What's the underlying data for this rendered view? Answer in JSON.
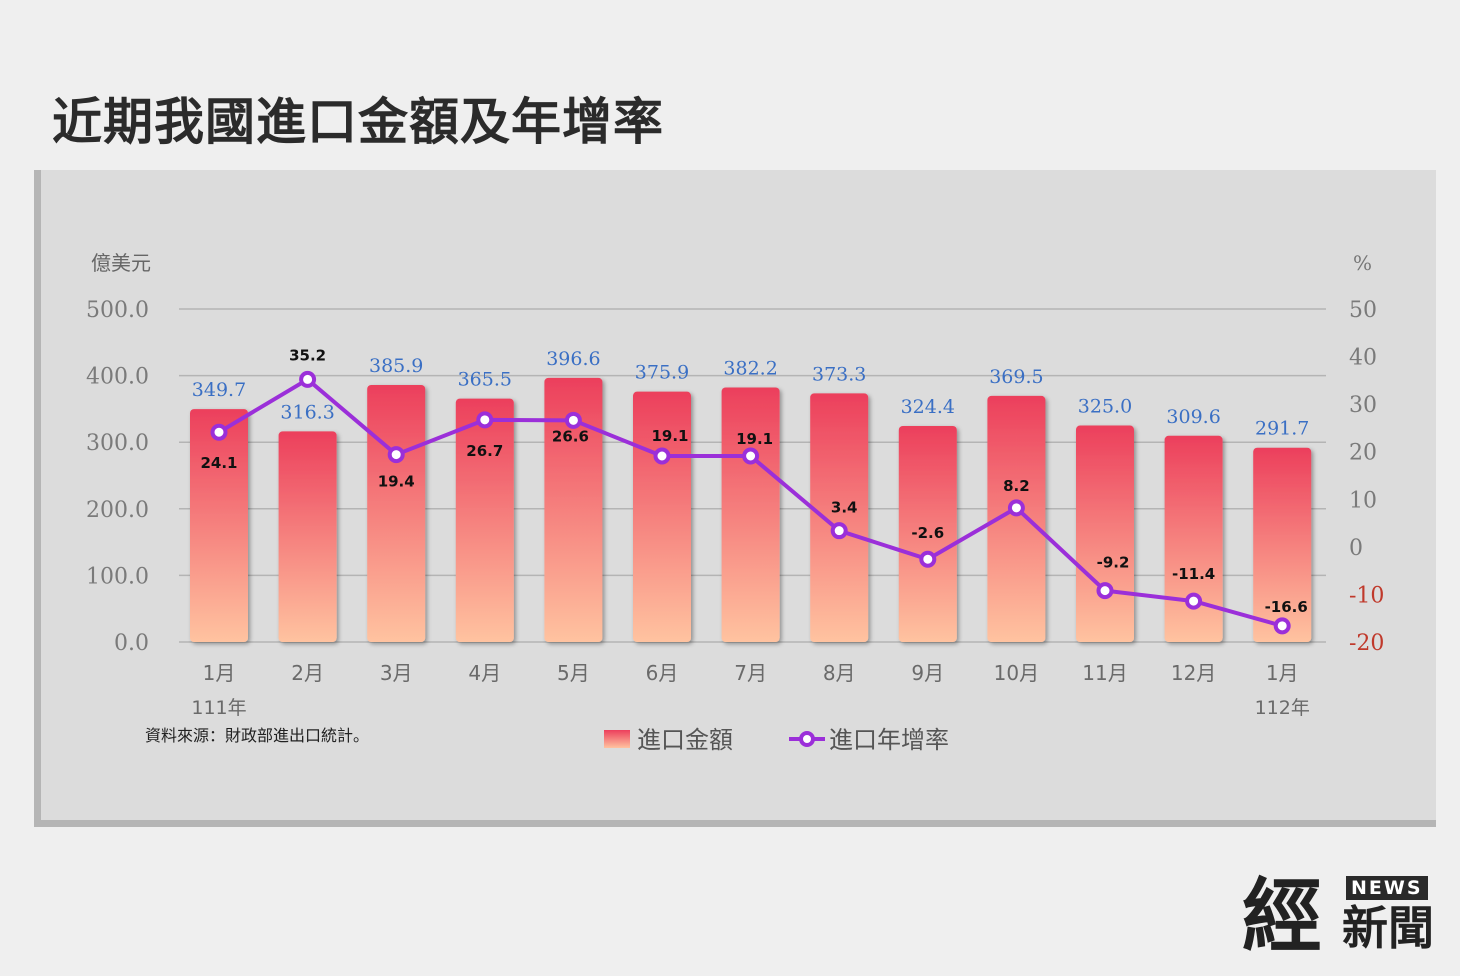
{
  "page": {
    "title": "近期我國進口金額及年增率"
  },
  "chart_data": {
    "type": "bar",
    "title": "近期我國進口金額及年增率",
    "categories": [
      "1月",
      "2月",
      "3月",
      "4月",
      "5月",
      "6月",
      "7月",
      "8月",
      "9月",
      "10月",
      "11月",
      "12月",
      "1月"
    ],
    "year_labels": {
      "first": "111年",
      "last": "112年"
    },
    "series": [
      {
        "name": "進口金額",
        "type": "bar",
        "axis": "left",
        "values": [
          349.7,
          316.3,
          385.9,
          365.5,
          396.6,
          375.9,
          382.2,
          373.3,
          324.4,
          369.5,
          325.0,
          309.6,
          291.7
        ],
        "labels": [
          "349.7",
          "316.3",
          "385.9",
          "365.5",
          "396.6",
          "375.9",
          "382.2",
          "373.3",
          "324.4",
          "369.5",
          "325.0",
          "309.6",
          "291.7"
        ]
      },
      {
        "name": "進口年增率",
        "type": "line",
        "axis": "right",
        "values": [
          24.1,
          35.2,
          19.4,
          26.7,
          26.6,
          19.1,
          19.1,
          3.4,
          -2.6,
          8.2,
          -9.2,
          -11.4,
          -16.6
        ],
        "labels": [
          "24.1",
          "35.2",
          "19.4",
          "26.7",
          "26.6",
          "19.1",
          "19.1",
          "3.4",
          "-2.6",
          "8.2",
          "-9.2",
          "-11.4",
          "-16.6"
        ]
      }
    ],
    "left_axis": {
      "unit": "億美元",
      "ylim": [
        0,
        500
      ],
      "ticks": [
        0,
        100,
        200,
        300,
        400,
        500
      ],
      "tick_labels": [
        "0.0",
        "100.0",
        "200.0",
        "300.0",
        "400.0",
        "500.0"
      ]
    },
    "right_axis": {
      "unit": "%",
      "ylim": [
        -20,
        50
      ],
      "ticks": [
        -20,
        -10,
        0,
        10,
        20,
        30,
        40,
        50
      ],
      "tick_labels": [
        "-20",
        "-10",
        "0",
        "10",
        "20",
        "30",
        "40",
        "50"
      ]
    },
    "grid": true,
    "legend_position": "bottom",
    "source": "資料來源：財政部進出口統計。",
    "colors": {
      "bar_top": "#ec3f5c",
      "bar_bottom": "#ffc3a0",
      "line": "#9b2fd9",
      "marker_fill": "#ffffff",
      "bar_label": "#3a6fc4",
      "grid": "#b4b4b4",
      "axis_text": "#7a7a7a",
      "negative_tick": "#c0392b"
    }
  },
  "brand": {
    "big": "經",
    "news": "NEWS",
    "small": "新聞"
  }
}
